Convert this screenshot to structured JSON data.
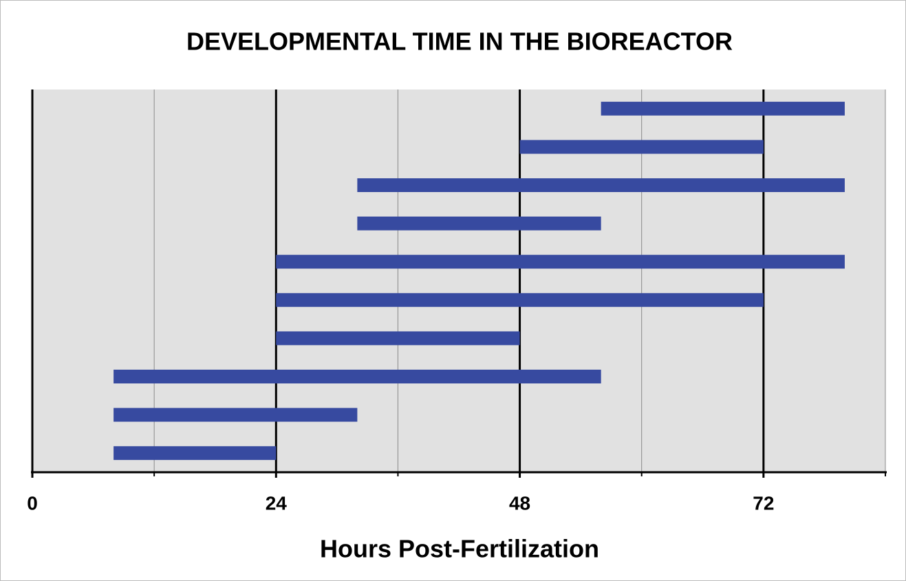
{
  "chart_data": {
    "type": "floating-bar",
    "title": "DEVELOPMENTAL TIME IN THE BIOREACTOR",
    "x_label": "Hours Post-Fertilization",
    "color": "#374aa0",
    "bars": [
      {
        "start": 56,
        "end": 80
      },
      {
        "start": 48,
        "end": 72
      },
      {
        "start": 32,
        "end": 80
      },
      {
        "start": 32,
        "end": 56
      },
      {
        "start": 24,
        "end": 80
      },
      {
        "start": 24,
        "end": 72
      },
      {
        "start": 24,
        "end": 48
      },
      {
        "start": 8,
        "end": 56
      },
      {
        "start": 8,
        "end": 32
      },
      {
        "start": 8,
        "end": 24
      }
    ],
    "xlim": [
      0,
      84
    ],
    "xticks": [
      0,
      24,
      48,
      72
    ],
    "minor_xticks": [
      12,
      36,
      60,
      84
    ],
    "grid": true
  }
}
